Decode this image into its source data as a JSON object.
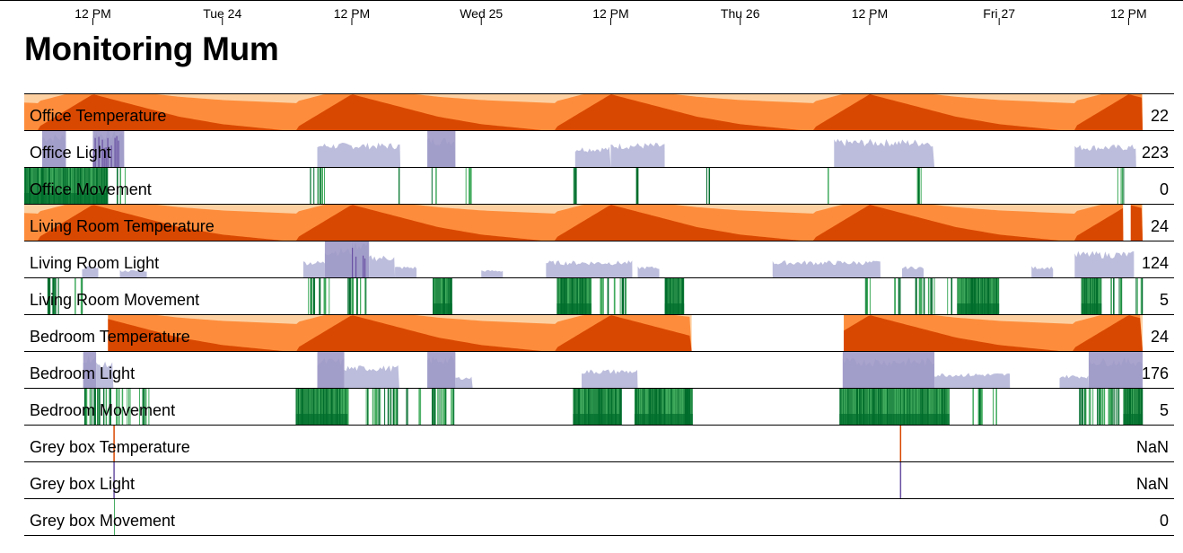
{
  "title": "Monitoring Mum",
  "axis": {
    "ticks": [
      {
        "label": "12 PM",
        "t": 12
      },
      {
        "label": "Tue 24",
        "t": 24
      },
      {
        "label": "12 PM",
        "t": 36
      },
      {
        "label": "Wed 25",
        "t": 48
      },
      {
        "label": "12 PM",
        "t": 60
      },
      {
        "label": "Thu 26",
        "t": 72
      },
      {
        "label": "12 PM",
        "t": 84
      },
      {
        "label": "Fri 27",
        "t": 96
      },
      {
        "label": "12 PM",
        "t": 108
      }
    ],
    "tick_unit": "hours since Mon 23 00:00"
  },
  "chart_data": {
    "type": "area",
    "subtype": "horizon",
    "title": "Monitoring Mum",
    "x_range_hours": [
      5,
      109
    ],
    "colors": {
      "temperature": [
        "#fdd0a2",
        "#fd8d3c",
        "#d94801"
      ],
      "light": [
        "#dadaeb",
        "#bcbddc",
        "#9e9ac8",
        "#6a51a3"
      ],
      "movement": [
        "#c7e9c0",
        "#41ab5d",
        "#238b45",
        "#006d2c"
      ]
    },
    "series": [
      {
        "name": "Office Temperature",
        "kind": "temperature",
        "current": "22",
        "segments": [
          [
            5,
            109.3
          ]
        ]
      },
      {
        "name": "Office Light",
        "kind": "light",
        "current": "223",
        "bursts": [
          [
            7.3,
            9.5,
            0.9
          ],
          [
            12,
            14.9,
            1.0
          ],
          [
            32.8,
            40.5,
            0.65
          ],
          [
            43,
            45.6,
            0.8
          ],
          [
            56.7,
            60,
            0.55
          ],
          [
            60,
            65,
            0.65
          ],
          [
            80.7,
            90,
            0.75
          ],
          [
            103,
            108.7,
            0.6
          ]
        ]
      },
      {
        "name": "Office Movement",
        "kind": "movement",
        "current": "0",
        "bursts": [
          [
            5.4,
            10.5,
            1.0
          ],
          [
            10.5,
            13.4,
            0.95
          ],
          [
            14.2,
            15.2,
            0.4
          ],
          [
            32.1,
            33.6,
            0.8
          ],
          [
            40.2,
            40.6,
            0.6
          ],
          [
            43.2,
            43.8,
            0.4
          ],
          [
            46.3,
            47,
            0.8
          ],
          [
            56.5,
            57.2,
            0.7
          ],
          [
            62.3,
            62.6,
            0.8
          ],
          [
            68.8,
            69.2,
            0.6
          ],
          [
            80,
            80.3,
            0.5
          ],
          [
            88.3,
            89,
            0.9
          ],
          [
            106.8,
            107.6,
            0.8
          ]
        ]
      },
      {
        "name": "Living Room Temperature",
        "kind": "temperature",
        "current": "24",
        "segments": [
          [
            5,
            107.5
          ],
          [
            108.2,
            109.3
          ]
        ]
      },
      {
        "name": "Living Room Light",
        "kind": "light",
        "current": "124",
        "bursts": [
          [
            11,
            12.5,
            0.3
          ],
          [
            14.5,
            17,
            0.2
          ],
          [
            31.5,
            33.5,
            0.45
          ],
          [
            33.5,
            36,
            0.8
          ],
          [
            36,
            37.6,
            1.0
          ],
          [
            37.6,
            40,
            0.6
          ],
          [
            40,
            42,
            0.3
          ],
          [
            48,
            50,
            0.2
          ],
          [
            54,
            62,
            0.45
          ],
          [
            62.5,
            64.5,
            0.3
          ],
          [
            75,
            85,
            0.45
          ],
          [
            87,
            89,
            0.3
          ],
          [
            99,
            101,
            0.3
          ],
          [
            103,
            108.5,
            0.7
          ]
        ]
      },
      {
        "name": "Living Room Movement",
        "kind": "movement",
        "current": "5",
        "bursts": [
          [
            7.7,
            9,
            0.9
          ],
          [
            10.3,
            11,
            0.7
          ],
          [
            31.9,
            34,
            0.9
          ],
          [
            35.5,
            37.3,
            0.9
          ],
          [
            43.5,
            45.3,
            0.95
          ],
          [
            55,
            58.2,
            1.0
          ],
          [
            59,
            60.4,
            0.9
          ],
          [
            60.8,
            61.5,
            0.8
          ],
          [
            65,
            66.8,
            0.95
          ],
          [
            83.4,
            84.3,
            0.7
          ],
          [
            86,
            86.8,
            0.8
          ],
          [
            88,
            90,
            0.9
          ],
          [
            91.1,
            91.6,
            0.6
          ],
          [
            92.1,
            96,
            0.95
          ],
          [
            103.6,
            105.5,
            0.95
          ],
          [
            106.3,
            107.3,
            0.8
          ],
          [
            108.5,
            109.3,
            0.8
          ]
        ]
      },
      {
        "name": "Bedroom Temperature",
        "kind": "temperature",
        "current": "24",
        "segments": [
          [
            13.4,
            67.5
          ],
          [
            81.6,
            109.3
          ]
        ]
      },
      {
        "name": "Bedroom Light",
        "kind": "light",
        "current": "176",
        "bursts": [
          [
            11.1,
            12.3,
            0.9
          ],
          [
            12.3,
            13.9,
            0.7
          ],
          [
            32.8,
            35.3,
            0.8
          ],
          [
            35.3,
            40.4,
            0.6
          ],
          [
            43,
            45.6,
            0.85
          ],
          [
            45.6,
            47.2,
            0.3
          ],
          [
            57.3,
            62.5,
            0.5
          ],
          [
            81.5,
            90,
            0.8
          ],
          [
            90,
            97,
            0.4
          ],
          [
            101.6,
            104.3,
            0.35
          ],
          [
            104.3,
            109.3,
            0.8
          ]
        ]
      },
      {
        "name": "Bedroom Movement",
        "kind": "movement",
        "current": "5",
        "bursts": [
          [
            11.2,
            14.5,
            0.9
          ],
          [
            14.5,
            17.2,
            0.5
          ],
          [
            30.8,
            35.6,
            1.0
          ],
          [
            36.8,
            40.2,
            0.8
          ],
          [
            40.9,
            41.2,
            0.6
          ],
          [
            42.1,
            42.5,
            0.5
          ],
          [
            43.2,
            45.5,
            0.9
          ],
          [
            56.5,
            58.4,
            1.0
          ],
          [
            58.4,
            61,
            1.0
          ],
          [
            62.2,
            67.6,
            1.0
          ],
          [
            81.2,
            86.1,
            1.0
          ],
          [
            86.1,
            91.4,
            0.95
          ],
          [
            93,
            94.5,
            0.6
          ],
          [
            95.2,
            95.8,
            0.5
          ],
          [
            103.2,
            107.5,
            0.9
          ],
          [
            107.5,
            109.3,
            1.0
          ]
        ]
      },
      {
        "name": "Grey box Temperature",
        "kind": "temperature",
        "current": "NaN",
        "segments": [
          [
            13.9,
            14.0
          ],
          [
            86.8,
            86.9
          ]
        ]
      },
      {
        "name": "Grey box Light",
        "kind": "light",
        "current": "NaN",
        "bursts": [
          [
            13.9,
            14.0,
            1.0
          ],
          [
            86.8,
            86.9,
            1.0
          ]
        ]
      },
      {
        "name": "Grey box Movement",
        "kind": "movement",
        "current": "0",
        "bursts": [
          [
            13.95,
            14.05,
            1.0
          ]
        ]
      }
    ]
  }
}
